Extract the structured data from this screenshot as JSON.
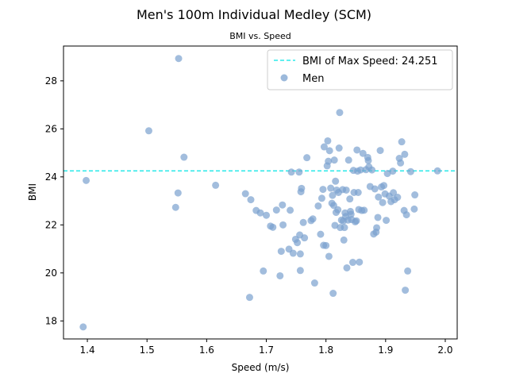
{
  "chart_data": {
    "type": "scatter",
    "title": "Men's 100m Individual Medley (SCM)",
    "subtitle": "BMI vs. Speed",
    "xlabel": "Speed (m/s)",
    "ylabel": "BMI",
    "xlim": [
      1.36,
      2.02
    ],
    "ylim": [
      17.25,
      29.45
    ],
    "xticks": [
      1.4,
      1.5,
      1.6,
      1.7,
      1.8,
      1.9,
      2.0
    ],
    "xtick_labels": [
      "1.4",
      "1.5",
      "1.6",
      "1.7",
      "1.8",
      "1.9",
      "2.0"
    ],
    "yticks": [
      18,
      20,
      22,
      24,
      26,
      28
    ],
    "ytick_labels": [
      "18",
      "20",
      "22",
      "24",
      "26",
      "28"
    ],
    "grid": false,
    "legend_position": "top-right",
    "reference_line": {
      "label": "BMI of Max Speed: 24.251",
      "y": 24.251,
      "color": "#00e5e5",
      "style": "dashed"
    },
    "series": [
      {
        "name": "Men",
        "color": "#7ba1cf",
        "points": [
          [
            1.393,
            17.75
          ],
          [
            1.398,
            23.85
          ],
          [
            1.503,
            25.92
          ],
          [
            1.548,
            22.73
          ],
          [
            1.552,
            23.33
          ],
          [
            1.553,
            28.93
          ],
          [
            1.562,
            24.82
          ],
          [
            1.615,
            23.65
          ],
          [
            1.665,
            23.3
          ],
          [
            1.672,
            18.98
          ],
          [
            1.674,
            23.05
          ],
          [
            1.683,
            22.6
          ],
          [
            1.69,
            22.5
          ],
          [
            1.695,
            20.08
          ],
          [
            1.7,
            22.4
          ],
          [
            1.707,
            21.95
          ],
          [
            1.711,
            21.9
          ],
          [
            1.717,
            22.62
          ],
          [
            1.723,
            19.88
          ],
          [
            1.725,
            20.9
          ],
          [
            1.727,
            22.83
          ],
          [
            1.728,
            22.0
          ],
          [
            1.738,
            20.99
          ],
          [
            1.74,
            22.61
          ],
          [
            1.742,
            24.2
          ],
          [
            1.745,
            20.82
          ],
          [
            1.749,
            21.4
          ],
          [
            1.752,
            21.26
          ],
          [
            1.755,
            24.2
          ],
          [
            1.756,
            21.58
          ],
          [
            1.757,
            20.79
          ],
          [
            1.757,
            20.1
          ],
          [
            1.758,
            23.38
          ],
          [
            1.759,
            23.52
          ],
          [
            1.762,
            22.1
          ],
          [
            1.764,
            21.46
          ],
          [
            1.768,
            24.8
          ],
          [
            1.775,
            22.18
          ],
          [
            1.778,
            22.25
          ],
          [
            1.781,
            19.58
          ],
          [
            1.787,
            22.79
          ],
          [
            1.791,
            21.61
          ],
          [
            1.793,
            23.11
          ],
          [
            1.795,
            23.48
          ],
          [
            1.796,
            21.15
          ],
          [
            1.797,
            25.25
          ],
          [
            1.8,
            21.14
          ],
          [
            1.802,
            24.46
          ],
          [
            1.803,
            25.5
          ],
          [
            1.804,
            24.65
          ],
          [
            1.805,
            20.69
          ],
          [
            1.806,
            25.09
          ],
          [
            1.808,
            23.53
          ],
          [
            1.81,
            22.9
          ],
          [
            1.811,
            23.23
          ],
          [
            1.812,
            19.15
          ],
          [
            1.813,
            22.81
          ],
          [
            1.814,
            24.7
          ],
          [
            1.815,
            21.98
          ],
          [
            1.816,
            23.82
          ],
          [
            1.817,
            22.52
          ],
          [
            1.818,
            23.45
          ],
          [
            1.82,
            22.63
          ],
          [
            1.821,
            23.35
          ],
          [
            1.822,
            25.2
          ],
          [
            1.823,
            26.68
          ],
          [
            1.824,
            21.89
          ],
          [
            1.826,
            22.2
          ],
          [
            1.828,
            23.47
          ],
          [
            1.829,
            22.16
          ],
          [
            1.83,
            21.37
          ],
          [
            1.831,
            21.89
          ],
          [
            1.832,
            22.5
          ],
          [
            1.833,
            22.35
          ],
          [
            1.834,
            23.45
          ],
          [
            1.835,
            20.21
          ],
          [
            1.837,
            22.2
          ],
          [
            1.838,
            24.7
          ],
          [
            1.84,
            23.08
          ],
          [
            1.841,
            22.56
          ],
          [
            1.842,
            22.44
          ],
          [
            1.843,
            22.22
          ],
          [
            1.845,
            20.44
          ],
          [
            1.846,
            24.27
          ],
          [
            1.847,
            23.35
          ],
          [
            1.849,
            22.13
          ],
          [
            1.851,
            22.17
          ],
          [
            1.852,
            25.12
          ],
          [
            1.853,
            24.24
          ],
          [
            1.854,
            23.35
          ],
          [
            1.855,
            22.64
          ],
          [
            1.856,
            20.45
          ],
          [
            1.858,
            24.29
          ],
          [
            1.86,
            22.6
          ],
          [
            1.862,
            24.98
          ],
          [
            1.864,
            22.61
          ],
          [
            1.867,
            24.3
          ],
          [
            1.87,
            24.81
          ],
          [
            1.871,
            24.68
          ],
          [
            1.872,
            24.42
          ],
          [
            1.874,
            23.6
          ],
          [
            1.877,
            24.29
          ],
          [
            1.88,
            21.62
          ],
          [
            1.882,
            23.5
          ],
          [
            1.884,
            21.7
          ],
          [
            1.885,
            21.88
          ],
          [
            1.887,
            22.31
          ],
          [
            1.888,
            23.16
          ],
          [
            1.891,
            25.1
          ],
          [
            1.893,
            23.58
          ],
          [
            1.895,
            22.93
          ],
          [
            1.897,
            23.64
          ],
          [
            1.899,
            23.29
          ],
          [
            1.901,
            22.19
          ],
          [
            1.903,
            24.14
          ],
          [
            1.906,
            23.2
          ],
          [
            1.909,
            22.97
          ],
          [
            1.912,
            24.24
          ],
          [
            1.913,
            23.34
          ],
          [
            1.915,
            23.05
          ],
          [
            1.92,
            23.15
          ],
          [
            1.923,
            24.77
          ],
          [
            1.925,
            24.58
          ],
          [
            1.927,
            25.46
          ],
          [
            1.931,
            22.6
          ],
          [
            1.932,
            24.94
          ],
          [
            1.933,
            19.28
          ],
          [
            1.935,
            22.42
          ],
          [
            1.937,
            20.08
          ],
          [
            1.942,
            24.22
          ],
          [
            1.948,
            22.66
          ],
          [
            1.949,
            23.25
          ],
          [
            1.987,
            24.25
          ]
        ]
      }
    ]
  }
}
